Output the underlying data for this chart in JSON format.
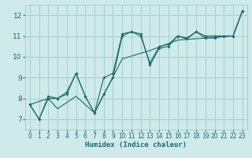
{
  "title": "",
  "xlabel": "Humidex (Indice chaleur)",
  "ylabel": "",
  "bg_color": "#ceeaea",
  "grid_color": "#a8cece",
  "line_color": "#1a6b6b",
  "xlim": [
    -0.5,
    23.5
  ],
  "ylim": [
    6.5,
    12.5
  ],
  "xticks": [
    0,
    1,
    2,
    3,
    4,
    5,
    6,
    7,
    8,
    9,
    10,
    11,
    12,
    13,
    14,
    15,
    16,
    17,
    18,
    19,
    20,
    21,
    22,
    23
  ],
  "yticks": [
    7,
    8,
    9,
    10,
    11,
    12
  ],
  "series": [
    [
      [
        0,
        7.7
      ],
      [
        1,
        7.0
      ],
      [
        2,
        8.0
      ],
      [
        3,
        8.0
      ],
      [
        4,
        8.2
      ],
      [
        5,
        9.2
      ],
      [
        6,
        8.1
      ],
      [
        7,
        7.3
      ],
      [
        8,
        9.0
      ],
      [
        9,
        9.2
      ],
      [
        10,
        11.1
      ],
      [
        11,
        11.2
      ],
      [
        12,
        11.1
      ],
      [
        13,
        9.6
      ],
      [
        14,
        10.4
      ],
      [
        15,
        10.5
      ],
      [
        16,
        11.0
      ],
      [
        17,
        10.85
      ],
      [
        18,
        11.2
      ],
      [
        19,
        10.9
      ],
      [
        20,
        10.9
      ],
      [
        21,
        11.0
      ],
      [
        22,
        11.0
      ],
      [
        23,
        12.2
      ]
    ],
    [
      [
        0,
        7.7
      ],
      [
        2,
        8.0
      ],
      [
        3,
        7.5
      ],
      [
        5,
        8.1
      ],
      [
        7,
        7.3
      ],
      [
        10,
        9.9
      ],
      [
        13,
        10.3
      ],
      [
        16,
        10.8
      ],
      [
        19,
        10.9
      ],
      [
        22,
        11.0
      ],
      [
        23,
        12.2
      ]
    ],
    [
      [
        0,
        7.7
      ],
      [
        1,
        7.0
      ],
      [
        2,
        8.1
      ],
      [
        3,
        8.0
      ],
      [
        4,
        8.3
      ],
      [
        5,
        9.2
      ],
      [
        6,
        8.1
      ],
      [
        7,
        7.3
      ],
      [
        8,
        8.2
      ],
      [
        9,
        9.0
      ],
      [
        10,
        11.0
      ],
      [
        11,
        11.2
      ],
      [
        12,
        11.0
      ],
      [
        13,
        9.7
      ],
      [
        14,
        10.5
      ],
      [
        15,
        10.6
      ],
      [
        16,
        11.0
      ],
      [
        17,
        10.9
      ],
      [
        18,
        11.2
      ],
      [
        19,
        11.0
      ],
      [
        20,
        11.0
      ],
      [
        21,
        11.0
      ],
      [
        22,
        11.0
      ],
      [
        23,
        12.2
      ]
    ]
  ]
}
